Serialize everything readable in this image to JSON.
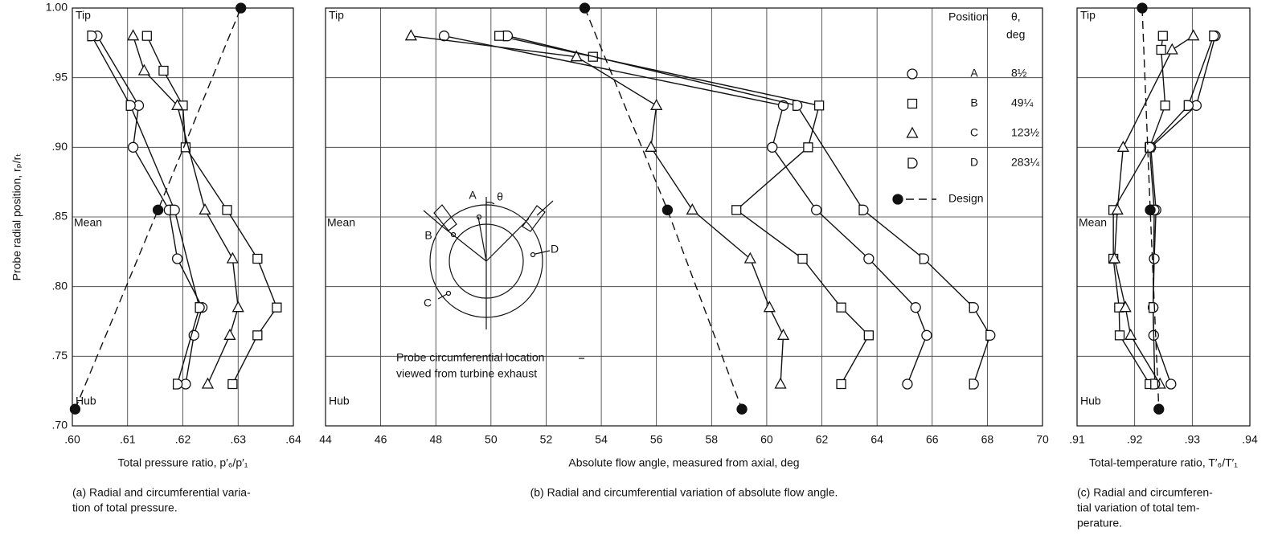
{
  "chart_data": [
    {
      "type": "scatter",
      "y_label": "Probe radial position, rₚ/rₜ",
      "x_label": "Total pressure ratio, p′₆/p′₁",
      "caption": [
        "(a) Radial and circumferential varia-",
        "tion of total pressure."
      ],
      "annotations": [
        "Tip",
        "Mean",
        "Hub"
      ],
      "xlim": [
        0.6,
        0.64
      ],
      "ylim": [
        0.7,
        1.0
      ],
      "xticks": [
        {
          "value": 0.6,
          "label": ".60"
        },
        {
          "value": 0.61,
          "label": ".61"
        },
        {
          "value": 0.62,
          "label": ".62"
        },
        {
          "value": 0.63,
          "label": ".63"
        },
        {
          "value": 0.64,
          "label": ".64"
        }
      ],
      "yticks": [
        {
          "value": 0.7,
          "label": ".70"
        },
        {
          "value": 0.75,
          "label": ".75"
        },
        {
          "value": 0.8,
          "label": ".80"
        },
        {
          "value": 0.85,
          "label": ".85"
        },
        {
          "value": 0.9,
          "label": ".90"
        },
        {
          "value": 0.95,
          "label": ".95"
        },
        {
          "value": 1.0,
          "label": "1.00"
        }
      ],
      "show_ytick_labels": true,
      "grid": true,
      "series": [
        {
          "name": "A",
          "marker": "circle",
          "color": "#111",
          "x": [
            0.6045,
            0.612,
            0.611,
            0.6175,
            0.619,
            0.6235,
            0.622,
            0.6205
          ],
          "values": [
            0.98,
            0.93,
            0.9,
            0.855,
            0.82,
            0.785,
            0.765,
            0.73
          ]
        },
        {
          "name": "B",
          "marker": "square",
          "color": "#111",
          "x": [
            0.6135,
            0.6165,
            0.62,
            0.6205,
            0.628,
            0.6335,
            0.637,
            0.6335,
            0.629
          ],
          "values": [
            0.98,
            0.955,
            0.93,
            0.9,
            0.855,
            0.82,
            0.785,
            0.765,
            0.73
          ]
        },
        {
          "name": "C",
          "marker": "triangle",
          "color": "#111",
          "x": [
            0.611,
            0.613,
            0.619,
            0.624,
            0.629,
            0.63,
            0.6285,
            0.6245
          ],
          "values": [
            0.98,
            0.955,
            0.93,
            0.855,
            0.82,
            0.785,
            0.765,
            0.73
          ]
        },
        {
          "name": "D",
          "marker": "halfcircle",
          "color": "#111",
          "x": [
            0.6035,
            0.6105,
            0.6185,
            0.623,
            0.619
          ],
          "values": [
            0.98,
            0.93,
            0.855,
            0.785,
            0.73
          ]
        },
        {
          "name": "Design",
          "marker": "filled-circle",
          "line": "dashed",
          "color": "#111",
          "x": [
            0.6005,
            0.6155,
            0.6305
          ],
          "values": [
            0.712,
            0.855,
            1.0
          ]
        }
      ]
    },
    {
      "type": "scatter",
      "x_label": "Absolute flow angle, measured from axial, deg",
      "caption": [
        "(b) Radial and circumferential variation of absolute flow angle."
      ],
      "annotations": [
        "Tip",
        "Mean",
        "Hub"
      ],
      "xlim": [
        44,
        70
      ],
      "ylim": [
        0.7,
        1.0
      ],
      "xticks": [
        44,
        46,
        48,
        50,
        52,
        54,
        56,
        58,
        60,
        62,
        64,
        66,
        68,
        70
      ],
      "yticks": [
        0.7,
        0.75,
        0.8,
        0.85,
        0.9,
        0.95,
        1.0
      ],
      "show_ytick_labels": false,
      "grid": true,
      "legend": {
        "title": "Position",
        "angle_title": [
          "θ,",
          "deg"
        ]
      },
      "inset": {
        "labels": [
          "A",
          "θ",
          "B",
          "C",
          "D"
        ],
        "note": [
          "Probe circumferential location",
          "viewed from turbine exhaust"
        ]
      },
      "series": [
        {
          "name": "A",
          "angle": "8½",
          "marker": "circle",
          "color": "#111",
          "x": [
            48.3,
            60.6,
            60.2,
            61.8,
            63.7,
            65.4,
            65.8,
            65.1
          ],
          "values": [
            0.98,
            0.93,
            0.9,
            0.855,
            0.82,
            0.785,
            0.765,
            0.73
          ]
        },
        {
          "name": "B",
          "angle": "49¼",
          "marker": "square",
          "color": "#111",
          "x": [
            50.3,
            53.7,
            61.9,
            61.5,
            58.9,
            61.3,
            62.7,
            63.7,
            62.7
          ],
          "values": [
            0.98,
            0.965,
            0.93,
            0.9,
            0.855,
            0.82,
            0.785,
            0.765,
            0.73
          ]
        },
        {
          "name": "C",
          "angle": "123½",
          "marker": "triangle",
          "color": "#111",
          "x": [
            47.1,
            53.1,
            56.0,
            55.8,
            57.3,
            59.4,
            60.1,
            60.6,
            60.5
          ],
          "values": [
            0.98,
            0.965,
            0.93,
            0.9,
            0.855,
            0.82,
            0.785,
            0.765,
            0.73
          ]
        },
        {
          "name": "D",
          "angle": "283¼",
          "marker": "halfcircle",
          "color": "#111",
          "x": [
            50.6,
            61.1,
            63.5,
            65.7,
            67.5,
            68.1,
            67.5
          ],
          "values": [
            0.98,
            0.93,
            0.855,
            0.82,
            0.785,
            0.765,
            0.73
          ]
        },
        {
          "name": "Design",
          "marker": "filled-circle",
          "line": "dashed",
          "color": "#111",
          "x": [
            53.4,
            56.4,
            59.1
          ],
          "values": [
            1.0,
            0.855,
            0.712
          ]
        }
      ]
    },
    {
      "type": "scatter",
      "x_label": "Total-temperature ratio, T′₆/T′₁",
      "caption": [
        "(c) Radial and circumferen-",
        "tial variation of total tem-",
        "perature."
      ],
      "annotations": [
        "Tip",
        "Mean",
        "Hub"
      ],
      "xlim": [
        0.91,
        0.94
      ],
      "ylim": [
        0.7,
        1.0
      ],
      "xticks": [
        {
          "value": 0.91,
          "label": ".91"
        },
        {
          "value": 0.92,
          "label": ".92"
        },
        {
          "value": 0.93,
          "label": ".93"
        },
        {
          "value": 0.94,
          "label": ".94"
        }
      ],
      "yticks": [
        0.7,
        0.75,
        0.8,
        0.85,
        0.9,
        0.95,
        1.0
      ],
      "show_ytick_labels": false,
      "grid": true,
      "series": [
        {
          "name": "A",
          "marker": "circle",
          "color": "#111",
          "x": [
            0.934,
            0.9307,
            0.9228,
            0.9237,
            0.9234,
            0.9232,
            0.9233,
            0.9263
          ],
          "values": [
            0.98,
            0.93,
            0.9,
            0.855,
            0.82,
            0.785,
            0.765,
            0.73
          ]
        },
        {
          "name": "B",
          "marker": "square",
          "color": "#111",
          "x": [
            0.9249,
            0.9246,
            0.9253,
            0.9226,
            0.9163,
            0.9163,
            0.9173,
            0.9174,
            0.9226
          ],
          "values": [
            0.98,
            0.97,
            0.93,
            0.9,
            0.855,
            0.82,
            0.785,
            0.765,
            0.73
          ]
        },
        {
          "name": "C",
          "marker": "triangle",
          "color": "#111",
          "x": [
            0.9302,
            0.9265,
            0.918,
            0.917,
            0.9165,
            0.9184,
            0.9193,
            0.9244
          ],
          "values": [
            0.98,
            0.97,
            0.9,
            0.855,
            0.82,
            0.785,
            0.765,
            0.73
          ]
        },
        {
          "name": "D",
          "marker": "halfcircle",
          "color": "#111",
          "x": [
            0.9337,
            0.9293,
            0.9226,
            0.9234,
            0.9232,
            0.9235
          ],
          "values": [
            0.98,
            0.93,
            0.9,
            0.855,
            0.785,
            0.73
          ]
        },
        {
          "name": "Design",
          "marker": "filled-circle",
          "line": "dashed",
          "color": "#111",
          "x": [
            0.9213,
            0.9227,
            0.9242
          ],
          "values": [
            1.0,
            0.855,
            0.712
          ]
        }
      ]
    }
  ]
}
